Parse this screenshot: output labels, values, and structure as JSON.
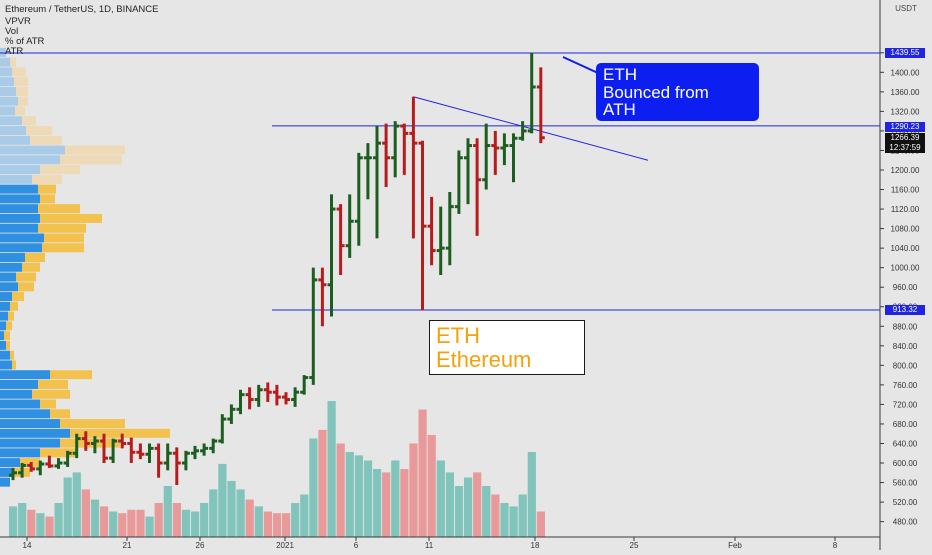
{
  "header": {
    "symbol_line": "Ethereum / TetherUS, 1D, BINANCE",
    "indicators": [
      "VPVR",
      "Vol",
      "% of ATR",
      "ATR"
    ]
  },
  "axis": {
    "currency": "USDT",
    "price_ticks": [
      1440,
      1400,
      1360,
      1320,
      1280,
      1240,
      1200,
      1160,
      1120,
      1080,
      1040,
      1000,
      960,
      920,
      880,
      840,
      800,
      760,
      720,
      680,
      640,
      600,
      560,
      520,
      480
    ],
    "date_labels": [
      "14",
      "21",
      "26",
      "2021",
      "6",
      "11",
      "18",
      "25",
      "Feb",
      "8"
    ]
  },
  "price_tags": {
    "ath_level": "1439.55",
    "resistance_level": "1290.23",
    "last_price": "1266.39",
    "countdown": "12:37:59",
    "support_level": "913.32"
  },
  "annotations": {
    "eth_box": {
      "line1": "ETH",
      "line2": "Ethereum"
    },
    "ath_box": {
      "line1": "ETH",
      "line2": "Bounced from",
      "line3": "ATH"
    }
  },
  "colors": {
    "up": "#1b5e20",
    "down": "#b71c1c",
    "vol_up": "#80c4bb",
    "vol_down": "#e89a9a",
    "level_line": "#1f25e0",
    "vpvr_up": "#2f8fe0",
    "vpvr_down": "#f2c14e",
    "vpvr_up_light": "#a9cbe8",
    "vpvr_down_light": "#eedab6"
  },
  "chart_data": {
    "type": "ohlc",
    "ylim": [
      470,
      1460
    ],
    "horizontal_levels": [
      1439.55,
      1290.23,
      913.32
    ],
    "trendline": {
      "from_price": 1350,
      "to_price": 1220
    },
    "candles": [
      {
        "o": 575,
        "h": 590,
        "l": 565,
        "c": 580,
        "v": 18
      },
      {
        "o": 580,
        "h": 600,
        "l": 570,
        "c": 595,
        "v": 20
      },
      {
        "o": 595,
        "h": 602,
        "l": 582,
        "c": 588,
        "v": 16
      },
      {
        "o": 588,
        "h": 605,
        "l": 575,
        "c": 598,
        "v": 14
      },
      {
        "o": 598,
        "h": 615,
        "l": 590,
        "c": 594,
        "v": 12
      },
      {
        "o": 594,
        "h": 610,
        "l": 588,
        "c": 600,
        "v": 20
      },
      {
        "o": 600,
        "h": 625,
        "l": 592,
        "c": 620,
        "v": 35
      },
      {
        "o": 620,
        "h": 660,
        "l": 610,
        "c": 650,
        "v": 38
      },
      {
        "o": 650,
        "h": 665,
        "l": 625,
        "c": 640,
        "v": 28
      },
      {
        "o": 640,
        "h": 655,
        "l": 620,
        "c": 645,
        "v": 22
      },
      {
        "o": 645,
        "h": 660,
        "l": 600,
        "c": 610,
        "v": 18
      },
      {
        "o": 610,
        "h": 650,
        "l": 600,
        "c": 645,
        "v": 15
      },
      {
        "o": 645,
        "h": 660,
        "l": 630,
        "c": 640,
        "v": 14
      },
      {
        "o": 640,
        "h": 652,
        "l": 600,
        "c": 622,
        "v": 16
      },
      {
        "o": 622,
        "h": 640,
        "l": 608,
        "c": 618,
        "v": 16
      },
      {
        "o": 618,
        "h": 640,
        "l": 600,
        "c": 630,
        "v": 12
      },
      {
        "o": 630,
        "h": 640,
        "l": 570,
        "c": 600,
        "v": 20
      },
      {
        "o": 600,
        "h": 640,
        "l": 585,
        "c": 620,
        "v": 30
      },
      {
        "o": 620,
        "h": 632,
        "l": 555,
        "c": 600,
        "v": 20
      },
      {
        "o": 600,
        "h": 625,
        "l": 585,
        "c": 620,
        "v": 16
      },
      {
        "o": 620,
        "h": 635,
        "l": 608,
        "c": 625,
        "v": 15
      },
      {
        "o": 625,
        "h": 640,
        "l": 615,
        "c": 630,
        "v": 20
      },
      {
        "o": 630,
        "h": 650,
        "l": 620,
        "c": 645,
        "v": 28
      },
      {
        "o": 645,
        "h": 700,
        "l": 640,
        "c": 690,
        "v": 43
      },
      {
        "o": 690,
        "h": 720,
        "l": 680,
        "c": 710,
        "v": 33
      },
      {
        "o": 710,
        "h": 750,
        "l": 700,
        "c": 740,
        "v": 28
      },
      {
        "o": 740,
        "h": 755,
        "l": 710,
        "c": 730,
        "v": 22
      },
      {
        "o": 730,
        "h": 760,
        "l": 715,
        "c": 750,
        "v": 18
      },
      {
        "o": 750,
        "h": 765,
        "l": 725,
        "c": 745,
        "v": 15
      },
      {
        "o": 745,
        "h": 760,
        "l": 718,
        "c": 735,
        "v": 14
      },
      {
        "o": 735,
        "h": 745,
        "l": 720,
        "c": 730,
        "v": 14
      },
      {
        "o": 730,
        "h": 755,
        "l": 715,
        "c": 745,
        "v": 20
      },
      {
        "o": 745,
        "h": 780,
        "l": 740,
        "c": 775,
        "v": 25
      },
      {
        "o": 775,
        "h": 1000,
        "l": 760,
        "c": 975,
        "v": 58
      },
      {
        "o": 975,
        "h": 1000,
        "l": 880,
        "c": 965,
        "v": 63
      },
      {
        "o": 965,
        "h": 1150,
        "l": 900,
        "c": 1120,
        "v": 80
      },
      {
        "o": 1120,
        "h": 1130,
        "l": 985,
        "c": 1045,
        "v": 55
      },
      {
        "o": 1045,
        "h": 1150,
        "l": 1020,
        "c": 1095,
        "v": 50
      },
      {
        "o": 1095,
        "h": 1235,
        "l": 1045,
        "c": 1225,
        "v": 48
      },
      {
        "o": 1225,
        "h": 1255,
        "l": 1140,
        "c": 1225,
        "v": 45
      },
      {
        "o": 1225,
        "h": 1290,
        "l": 1060,
        "c": 1255,
        "v": 40
      },
      {
        "o": 1255,
        "h": 1295,
        "l": 1165,
        "c": 1225,
        "v": 38
      },
      {
        "o": 1225,
        "h": 1300,
        "l": 1185,
        "c": 1290,
        "v": 45
      },
      {
        "o": 1290,
        "h": 1295,
        "l": 1190,
        "c": 1275,
        "v": 40
      },
      {
        "o": 1275,
        "h": 1350,
        "l": 1060,
        "c": 1255,
        "v": 55
      },
      {
        "o": 1255,
        "h": 1260,
        "l": 913,
        "c": 1085,
        "v": 75
      },
      {
        "o": 1085,
        "h": 1145,
        "l": 1005,
        "c": 1035,
        "v": 60
      },
      {
        "o": 1035,
        "h": 1125,
        "l": 985,
        "c": 1040,
        "v": 45
      },
      {
        "o": 1040,
        "h": 1155,
        "l": 1005,
        "c": 1125,
        "v": 38
      },
      {
        "o": 1125,
        "h": 1240,
        "l": 1110,
        "c": 1225,
        "v": 30
      },
      {
        "o": 1225,
        "h": 1265,
        "l": 1130,
        "c": 1250,
        "v": 35
      },
      {
        "o": 1250,
        "h": 1265,
        "l": 1065,
        "c": 1180,
        "v": 38
      },
      {
        "o": 1180,
        "h": 1295,
        "l": 1160,
        "c": 1250,
        "v": 30
      },
      {
        "o": 1250,
        "h": 1280,
        "l": 1190,
        "c": 1245,
        "v": 25
      },
      {
        "o": 1245,
        "h": 1275,
        "l": 1210,
        "c": 1250,
        "v": 20
      },
      {
        "o": 1250,
        "h": 1275,
        "l": 1175,
        "c": 1265,
        "v": 18
      },
      {
        "o": 1265,
        "h": 1300,
        "l": 1260,
        "c": 1280,
        "v": 25
      },
      {
        "o": 1280,
        "h": 1440,
        "l": 1275,
        "c": 1370,
        "v": 50
      },
      {
        "o": 1370,
        "h": 1410,
        "l": 1255,
        "c": 1266,
        "v": 15
      }
    ],
    "vpvr": [
      {
        "p": 1440,
        "up": 6,
        "down": 0,
        "light": true
      },
      {
        "p": 1420,
        "up": 10,
        "down": 6,
        "light": true
      },
      {
        "p": 1400,
        "up": 12,
        "down": 14,
        "light": true
      },
      {
        "p": 1380,
        "up": 14,
        "down": 14,
        "light": true
      },
      {
        "p": 1360,
        "up": 16,
        "down": 12,
        "light": true
      },
      {
        "p": 1340,
        "up": 18,
        "down": 10,
        "light": true
      },
      {
        "p": 1320,
        "up": 15,
        "down": 10,
        "light": true
      },
      {
        "p": 1300,
        "up": 22,
        "down": 14,
        "light": true
      },
      {
        "p": 1280,
        "up": 26,
        "down": 26,
        "light": true
      },
      {
        "p": 1260,
        "up": 30,
        "down": 32,
        "light": true
      },
      {
        "p": 1240,
        "up": 65,
        "down": 60,
        "light": true
      },
      {
        "p": 1220,
        "up": 60,
        "down": 62,
        "light": true
      },
      {
        "p": 1200,
        "up": 40,
        "down": 40,
        "light": true
      },
      {
        "p": 1180,
        "up": 32,
        "down": 30,
        "light": true
      },
      {
        "p": 1160,
        "up": 38,
        "down": 18,
        "light": false
      },
      {
        "p": 1140,
        "up": 40,
        "down": 15,
        "light": false
      },
      {
        "p": 1120,
        "up": 38,
        "down": 42,
        "light": false
      },
      {
        "p": 1100,
        "up": 40,
        "down": 62,
        "light": false
      },
      {
        "p": 1080,
        "up": 38,
        "down": 48,
        "light": false
      },
      {
        "p": 1060,
        "up": 44,
        "down": 40,
        "light": false
      },
      {
        "p": 1040,
        "up": 42,
        "down": 42,
        "light": false
      },
      {
        "p": 1020,
        "up": 25,
        "down": 20,
        "light": false
      },
      {
        "p": 1000,
        "up": 22,
        "down": 18,
        "light": false
      },
      {
        "p": 980,
        "up": 16,
        "down": 20,
        "light": false
      },
      {
        "p": 960,
        "up": 18,
        "down": 16,
        "light": false
      },
      {
        "p": 940,
        "up": 12,
        "down": 12,
        "light": false
      },
      {
        "p": 920,
        "up": 10,
        "down": 8,
        "light": false
      },
      {
        "p": 900,
        "up": 8,
        "down": 6,
        "light": false
      },
      {
        "p": 880,
        "up": 6,
        "down": 6,
        "light": false
      },
      {
        "p": 860,
        "up": 4,
        "down": 6,
        "light": false
      },
      {
        "p": 840,
        "up": 6,
        "down": 4,
        "light": false
      },
      {
        "p": 820,
        "up": 10,
        "down": 4,
        "light": false
      },
      {
        "p": 800,
        "up": 12,
        "down": 4,
        "light": false
      },
      {
        "p": 780,
        "up": 50,
        "down": 42,
        "light": false
      },
      {
        "p": 760,
        "up": 38,
        "down": 30,
        "light": false
      },
      {
        "p": 740,
        "up": 32,
        "down": 38,
        "light": false
      },
      {
        "p": 720,
        "up": 40,
        "down": 16,
        "light": false
      },
      {
        "p": 700,
        "up": 50,
        "down": 20,
        "light": false
      },
      {
        "p": 680,
        "up": 60,
        "down": 65,
        "light": false
      },
      {
        "p": 660,
        "up": 70,
        "down": 100,
        "light": false
      },
      {
        "p": 640,
        "up": 60,
        "down": 60,
        "light": false
      },
      {
        "p": 620,
        "up": 40,
        "down": 36,
        "light": false
      },
      {
        "p": 600,
        "up": 20,
        "down": 20,
        "light": false
      },
      {
        "p": 580,
        "up": 14,
        "down": 16,
        "light": false
      },
      {
        "p": 560,
        "up": 10,
        "down": 0,
        "light": false
      }
    ]
  }
}
